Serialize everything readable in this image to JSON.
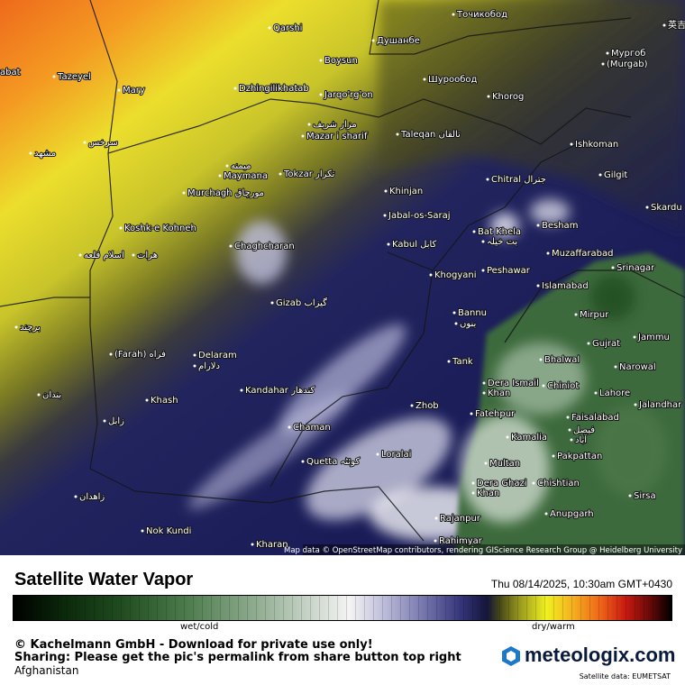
{
  "map": {
    "labels": [
      "Qarshi",
      "Душанбе",
      "Точикобод",
      "Boysun",
      "Шурообод",
      "Мургоб",
      "(Murgab)",
      "Tazeyel",
      "Mary",
      "Dzhingilikhatab",
      "Jarqo'rg'on",
      "Khorog",
      "مزار شریف",
      "Mazar i sharif",
      "Taleqan تالقان",
      "Ishkoman",
      "مشهد",
      "سرخس",
      "میمنه",
      "Maymana",
      "Tokzar تکزار",
      "Chitral جترال",
      "Gilgit",
      "Murchagh مورچاق",
      "Khinjan",
      "Skardu",
      "Jabal-os-Saraj",
      "Bat Khela",
      "بت خیلہ",
      "Besham",
      "Koshk-e Kohneh",
      "Kabul کابل",
      "Chaghcharan",
      "Muzaffarabad",
      "اسلام قلعه",
      "هرات",
      "Srinagar",
      "Peshawar",
      "Khogyani",
      "Islamabad",
      "Gizab گیزاب",
      "Bannu",
      "بنوں",
      "Mirpur",
      "Jammu",
      "برچند",
      "Gujrat",
      "(Farah) فراه",
      "Delaram",
      "دلارام",
      "Tank",
      "Bhalwal",
      "Narowal",
      "Dera Ismail",
      "Khan",
      "Chiniot",
      "Kandahar کندهار",
      "Lahore",
      "بندان",
      "Khash",
      "Zhob",
      "Jalandhar",
      "Fatehpur",
      "Faisalabad",
      "فیصل",
      "آباد",
      "زابل",
      "Chaman",
      "Kamalia",
      "Loralai",
      "Quetta کوئٹہ",
      "Multan",
      "Pakpattan",
      "Dera Ghazi",
      "Khan",
      "Chishtian",
      "زاهدان",
      "Sirsa",
      "Anupgarh",
      "Rajanpur",
      "Nok Kundi",
      "Kharan",
      "Rahimyar",
      "英吉",
      "abat"
    ],
    "attribution": "Map data © OpenStreetMap contributors, rendering GIScience Research Group @ Heidelberg University"
  },
  "footer": {
    "title": "Satellite Water Vapor",
    "date": "Thu 08/14/2025, 10:30am GMT+0430",
    "legend_low": "wet/cold",
    "legend_high": "dry/warm",
    "copyright": "© Kachelmann GmbH - Download for private use only!",
    "sharing": "Sharing: Please get the pic's permalink from share button top right",
    "region": "Afghanistan",
    "brand": "meteologix.com",
    "source": "Satellite data: EUMETSAT"
  }
}
